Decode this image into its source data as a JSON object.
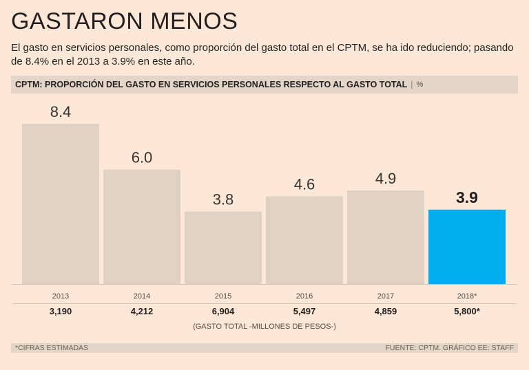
{
  "header": {
    "title": "GASTARON MENOS",
    "subtitle": "El gasto en servicios personales, como proporción del gasto total en el CPTM, se ha ido reduciendo; pasando de 8.4% en el 2013 a 3.9% en este año."
  },
  "chart_header": {
    "label": "CPTM: PROPORCIÓN DEL GASTO EN SERVICIOS PERSONALES RESPECTO AL GASTO TOTAL",
    "separator": "|",
    "unit": "%"
  },
  "chart_data": {
    "type": "bar",
    "categories": [
      "2013",
      "2014",
      "2015",
      "2016",
      "2017",
      "2018*"
    ],
    "values": [
      8.4,
      6.0,
      3.8,
      4.6,
      4.9,
      3.9
    ],
    "value_labels": [
      "8.4",
      "6.0",
      "3.8",
      "4.6",
      "4.9",
      "3.9"
    ],
    "ylim": [
      0,
      8.4
    ],
    "grid": false,
    "highlight_index": 5,
    "colors": {
      "bar": "#e0d1c2",
      "highlight": "#00aeef",
      "axis": "#d2c5b8"
    },
    "totals": [
      "3,190",
      "4,212",
      "6,904",
      "5,497",
      "4,859",
      "5,800*"
    ]
  },
  "totals_caption": "(GASTO TOTAL -MILLONES DE PESOS-)",
  "footer": {
    "note": "*CIFRAS ESTIMADAS",
    "source": "FUENTE: CPTM. GRÁFICO EE: STAFF"
  }
}
